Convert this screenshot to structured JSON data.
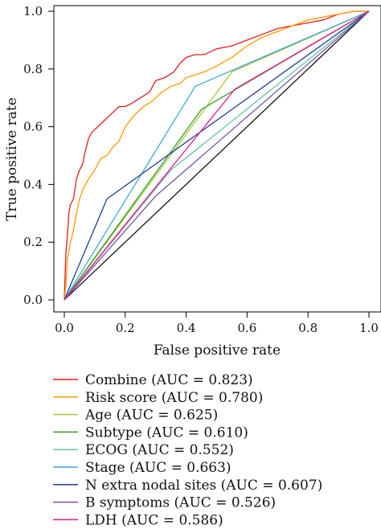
{
  "chart_data": {
    "type": "line",
    "title": "",
    "xlabel": "False positive rate",
    "ylabel": "True positive rate",
    "xlim": [
      0,
      1
    ],
    "ylim": [
      0,
      1
    ],
    "xticks": [
      "0.0",
      "0.2",
      "0.4",
      "0.6",
      "0.8",
      "1.0"
    ],
    "yticks": [
      "0.0",
      "0.2",
      "0.4",
      "0.6",
      "0.8",
      "1.0"
    ],
    "grid": false,
    "legend_position": "below",
    "reference_line": {
      "x": [
        0,
        1
      ],
      "y": [
        0,
        1
      ],
      "color": "#000000"
    },
    "series": [
      {
        "name": "Combine (AUC = 0.823)",
        "color": "#e41a1c",
        "x": [
          0,
          0.005,
          0.01,
          0.015,
          0.02,
          0.03,
          0.04,
          0.05,
          0.06,
          0.07,
          0.08,
          0.09,
          0.1,
          0.11,
          0.12,
          0.14,
          0.16,
          0.18,
          0.2,
          0.22,
          0.25,
          0.28,
          0.3,
          0.33,
          0.36,
          0.38,
          0.4,
          0.43,
          0.46,
          0.5,
          0.55,
          0.6,
          0.65,
          0.7,
          0.75,
          0.8,
          0.85,
          0.9,
          0.95,
          1.0
        ],
        "y": [
          0,
          0.16,
          0.22,
          0.3,
          0.33,
          0.35,
          0.42,
          0.45,
          0.47,
          0.52,
          0.56,
          0.58,
          0.59,
          0.6,
          0.61,
          0.63,
          0.65,
          0.67,
          0.67,
          0.68,
          0.7,
          0.72,
          0.76,
          0.77,
          0.79,
          0.82,
          0.84,
          0.85,
          0.85,
          0.87,
          0.88,
          0.9,
          0.92,
          0.94,
          0.95,
          0.96,
          0.97,
          0.99,
          1.0,
          1.0
        ]
      },
      {
        "name": "Risk score (AUC = 0.780)",
        "color": "#ff9900",
        "x": [
          0,
          0.005,
          0.01,
          0.02,
          0.03,
          0.04,
          0.05,
          0.06,
          0.08,
          0.1,
          0.12,
          0.14,
          0.16,
          0.18,
          0.2,
          0.23,
          0.26,
          0.29,
          0.32,
          0.35,
          0.38,
          0.4,
          0.43,
          0.46,
          0.5,
          0.55,
          0.6,
          0.65,
          0.7,
          0.75,
          0.8,
          0.85,
          0.9,
          0.95,
          1.0
        ],
        "y": [
          0,
          0.05,
          0.14,
          0.2,
          0.24,
          0.3,
          0.35,
          0.38,
          0.42,
          0.45,
          0.49,
          0.5,
          0.53,
          0.55,
          0.6,
          0.64,
          0.67,
          0.69,
          0.72,
          0.74,
          0.75,
          0.77,
          0.78,
          0.79,
          0.81,
          0.84,
          0.88,
          0.91,
          0.93,
          0.95,
          0.97,
          0.98,
          0.99,
          1.0,
          1.0
        ]
      },
      {
        "name": "Age (AUC = 0.625)",
        "color": "#a6c638",
        "x": [
          0,
          0.55,
          1
        ],
        "y": [
          0,
          0.79,
          1
        ]
      },
      {
        "name": "Subtype (AUC = 0.610)",
        "color": "#33a02c",
        "x": [
          0,
          0.45,
          1
        ],
        "y": [
          0,
          0.66,
          1
        ]
      },
      {
        "name": "ECOG (AUC = 0.552)",
        "color": "#66c2a5",
        "x": [
          0,
          0.35,
          1
        ],
        "y": [
          0,
          0.45,
          1
        ]
      },
      {
        "name": "Stage (AUC = 0.663)",
        "color": "#3fa9d9",
        "x": [
          0,
          0.43,
          1
        ],
        "y": [
          0,
          0.74,
          1
        ]
      },
      {
        "name": "N extra nodal sites (AUC = 0.607)",
        "color": "#1f3e96",
        "x": [
          0,
          0.14,
          1
        ],
        "y": [
          0,
          0.35,
          1
        ]
      },
      {
        "name": "B symptoms (AUC = 0.526)",
        "color": "#7b52ab",
        "x": [
          0,
          0.3,
          1
        ],
        "y": [
          0,
          0.36,
          1
        ]
      },
      {
        "name": "LDH (AUC = 0.586)",
        "color": "#e6198c",
        "x": [
          0,
          0.56,
          1
        ],
        "y": [
          0,
          0.73,
          1
        ]
      }
    ]
  }
}
